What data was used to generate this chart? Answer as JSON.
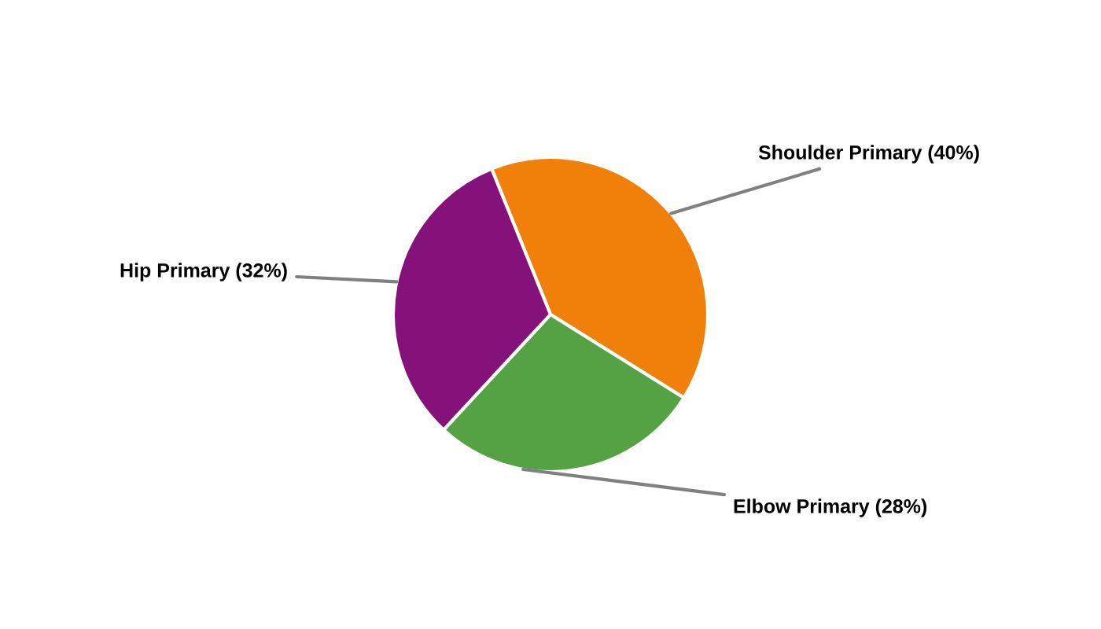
{
  "chart_data": {
    "type": "pie",
    "categories": [
      "Shoulder Primary",
      "Elbow Primary",
      "Hip Primary"
    ],
    "values": [
      40,
      28,
      32
    ],
    "value_labels": [
      "(40%)",
      "(28%)",
      "(32%)"
    ],
    "colors": [
      "#f0800a",
      "#55a244",
      "#85117a"
    ]
  }
}
